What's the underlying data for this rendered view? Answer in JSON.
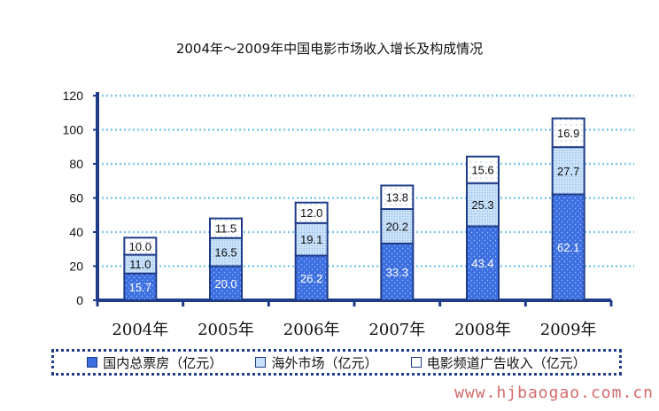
{
  "title": "2004年～2009年中国电影市场收入增长及构成情况",
  "watermark": "www.hjbaogao.com.cn",
  "legend": {
    "domestic": "国内总票房（亿元）",
    "overseas": "海外市场（亿元）",
    "ad": "电影频道广告收入（亿元）"
  },
  "colors": {
    "domestic": "#3d6fe0",
    "overseas": "#c9e1f8",
    "ad": "#ffffff",
    "outline": "#1f3c88",
    "grid": "#7fc8ea"
  },
  "chart_data": {
    "type": "bar",
    "stacked": true,
    "categories": [
      "2004年",
      "2005年",
      "2006年",
      "2007年",
      "2008年",
      "2009年"
    ],
    "series": [
      {
        "name": "国内总票房（亿元）",
        "values": [
          15.7,
          20.0,
          26.2,
          33.3,
          43.4,
          62.1
        ]
      },
      {
        "name": "海外市场（亿元）",
        "values": [
          11.0,
          16.5,
          19.1,
          20.2,
          25.3,
          27.7
        ]
      },
      {
        "name": "电影频道广告收入（亿元）",
        "values": [
          10.0,
          11.5,
          12.0,
          13.8,
          15.6,
          16.9
        ]
      }
    ],
    "value_labels": [
      [
        "15.7",
        "20.0",
        "26.2",
        "33.3",
        "43.4",
        "62.1"
      ],
      [
        "11.0",
        "16.5",
        "19.1",
        "20.2",
        "25.3",
        "27.7"
      ],
      [
        "10.0",
        "11.5",
        "12.0",
        "13.8",
        "15.6",
        "16.9"
      ]
    ],
    "yticks": [
      "0",
      "20",
      "40",
      "60",
      "80",
      "100",
      "120"
    ],
    "ylim": [
      0,
      120
    ],
    "grid": true,
    "legend_position": "bottom"
  }
}
